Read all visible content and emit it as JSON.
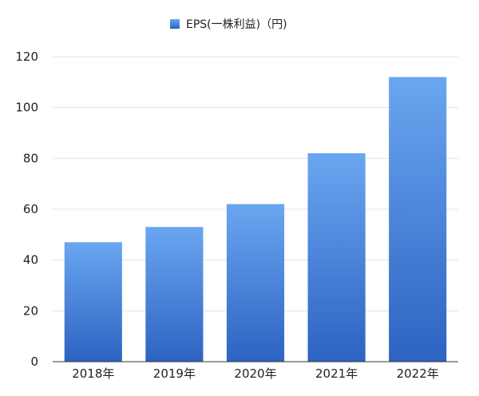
{
  "chart_data": {
    "type": "bar",
    "categories": [
      "2018年",
      "2019年",
      "2020年",
      "2021年",
      "2022年"
    ],
    "series": [
      {
        "name": "EPS(一株利益)（円)",
        "values": [
          47,
          53,
          62,
          82,
          112
        ]
      }
    ],
    "ylim": [
      0,
      120
    ],
    "yticks": [
      0,
      20,
      40,
      60,
      80,
      100,
      120
    ],
    "grid": true,
    "legend_position": "top-center",
    "colors": {
      "bar_top": "#6aa6f0",
      "bar_bottom": "#2d63c2",
      "grid": "#e3e3e3",
      "axis": "#333333"
    }
  }
}
